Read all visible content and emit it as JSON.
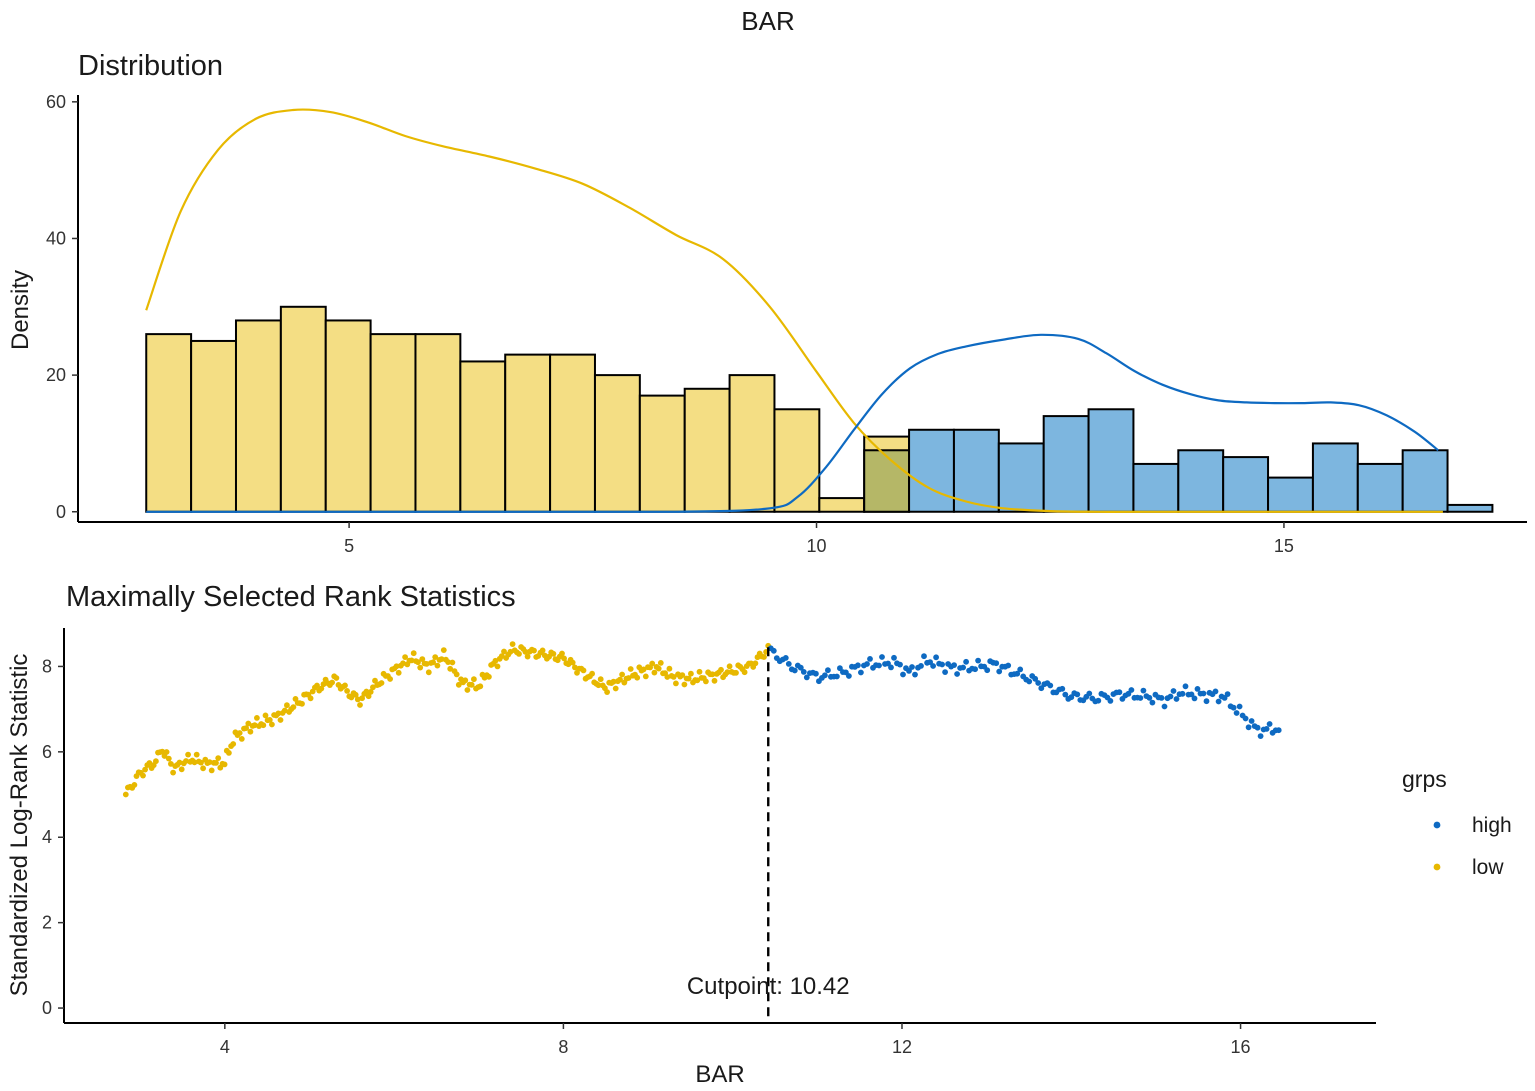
{
  "figure": {
    "title": "BAR",
    "colors": {
      "low": "#E7B800",
      "low_fill": "#F4DE84",
      "high": "#0E6AC2",
      "high_fill": "#7DB6DF",
      "overlap_fill": "#B5B767",
      "cutline": "#000000"
    }
  },
  "chart_data": [
    {
      "type": "bar",
      "subtype": "histogram-with-density",
      "title": "Distribution",
      "xlabel": "",
      "ylabel": "Density",
      "xlim": [
        2.1,
        17.6
      ],
      "ylim": [
        -1.5,
        61
      ],
      "x_ticks": [
        5,
        10,
        15
      ],
      "y_ticks": [
        0,
        20,
        40,
        60
      ],
      "grid": false,
      "bin_width": 0.48,
      "series": [
        {
          "name": "low",
          "bin_starts": [
            2.83,
            3.31,
            3.79,
            4.27,
            4.75,
            5.23,
            5.71,
            6.19,
            6.67,
            7.15,
            7.63,
            8.11,
            8.59,
            9.07,
            9.55,
            10.03,
            10.51
          ],
          "values": [
            26,
            25,
            28,
            30,
            28,
            26,
            26,
            22,
            23,
            23,
            20,
            17,
            18,
            20,
            15,
            2,
            11
          ]
        },
        {
          "name": "high",
          "bin_starts": [
            10.51,
            10.99,
            11.47,
            11.95,
            12.43,
            12.91,
            13.39,
            13.87,
            14.35,
            14.83,
            15.31,
            15.79,
            16.27,
            16.75
          ],
          "values": [
            9,
            12,
            12,
            10,
            14,
            15,
            7,
            9,
            8,
            5,
            10,
            7,
            9,
            1
          ]
        }
      ],
      "density_curves": [
        {
          "name": "low",
          "x": [
            2.83,
            3.2,
            3.6,
            4.0,
            4.4,
            4.8,
            5.2,
            5.6,
            6.0,
            6.5,
            7.0,
            7.5,
            8.0,
            8.5,
            9.0,
            9.5,
            10.0,
            10.4,
            10.8,
            11.2,
            11.6,
            12.0,
            12.5,
            13.0,
            14.0,
            16.7
          ],
          "y": [
            29.5,
            44,
            53,
            57.5,
            58.8,
            58.5,
            57,
            55,
            53.5,
            52,
            50.2,
            48,
            44.5,
            40.5,
            37,
            30,
            20.5,
            13,
            7.5,
            3.5,
            1.5,
            0.5,
            0.1,
            0,
            0,
            0
          ]
        },
        {
          "name": "high",
          "x": [
            2.83,
            6.0,
            8.5,
            9.5,
            9.8,
            10.1,
            10.4,
            10.7,
            11.0,
            11.3,
            11.6,
            12.0,
            12.4,
            12.8,
            13.1,
            13.4,
            13.7,
            14.0,
            14.3,
            14.6,
            14.9,
            15.2,
            15.5,
            15.8,
            16.1,
            16.4,
            16.65
          ],
          "y": [
            0,
            0,
            0,
            0.5,
            2.2,
            6.5,
            12,
            17.2,
            21,
            23.1,
            24.2,
            25.2,
            25.9,
            25.3,
            23.2,
            20.6,
            18.6,
            17.2,
            16.3,
            16,
            15.9,
            15.9,
            16,
            15.6,
            14.1,
            11.7,
            9
          ]
        }
      ]
    },
    {
      "type": "scatter",
      "title": "Maximally Selected Rank Statistics",
      "xlabel": "BAR",
      "ylabel": "Standardized Log-Rank Statistic",
      "xlim": [
        2.1,
        17.6
      ],
      "ylim": [
        -0.35,
        8.9
      ],
      "x_ticks": [
        4,
        8,
        12,
        16
      ],
      "y_ticks": [
        0,
        2,
        4,
        6,
        8
      ],
      "grid": false,
      "cutpoint": {
        "value": 10.42,
        "label": "Cutpoint: 10.42",
        "style": "dashed"
      },
      "legend": {
        "title": "grps",
        "position": "right",
        "entries": [
          "high",
          "low"
        ]
      },
      "series": [
        {
          "name": "low",
          "anchor_x": [
            2.83,
            3.0,
            3.2,
            3.25,
            3.4,
            3.6,
            3.8,
            4.0,
            4.1,
            4.3,
            4.6,
            4.9,
            5.1,
            5.3,
            5.45,
            5.6,
            5.8,
            6.0,
            6.2,
            6.4,
            6.6,
            6.8,
            7.0,
            7.2,
            7.4,
            7.7,
            8.0,
            8.2,
            8.5,
            8.8,
            9.1,
            9.3,
            9.5,
            9.8,
            10.2,
            10.42
          ],
          "anchor_y": [
            5.0,
            5.5,
            5.8,
            6.1,
            5.6,
            5.85,
            5.7,
            5.75,
            6.3,
            6.6,
            6.8,
            7.2,
            7.5,
            7.7,
            7.4,
            7.2,
            7.6,
            7.9,
            8.2,
            8.0,
            8.25,
            7.6,
            7.55,
            8.1,
            8.4,
            8.3,
            8.2,
            7.9,
            7.5,
            7.8,
            8.0,
            7.75,
            7.7,
            7.8,
            8.0,
            8.4
          ],
          "point_count": 300
        },
        {
          "name": "high",
          "anchor_x": [
            10.45,
            10.7,
            11.0,
            11.3,
            11.6,
            11.9,
            12.1,
            12.3,
            12.6,
            12.9,
            13.1,
            13.35,
            13.7,
            14.0,
            14.3,
            14.6,
            14.9,
            15.1,
            15.3,
            15.5,
            15.8,
            16.0,
            16.2,
            16.45
          ],
          "anchor_y": [
            8.35,
            8.0,
            7.75,
            7.85,
            8.05,
            8.1,
            7.85,
            8.15,
            7.95,
            8.0,
            8.05,
            7.85,
            7.55,
            7.3,
            7.25,
            7.35,
            7.3,
            7.2,
            7.4,
            7.35,
            7.3,
            6.9,
            6.5,
            6.55
          ],
          "point_count": 170
        }
      ]
    }
  ]
}
